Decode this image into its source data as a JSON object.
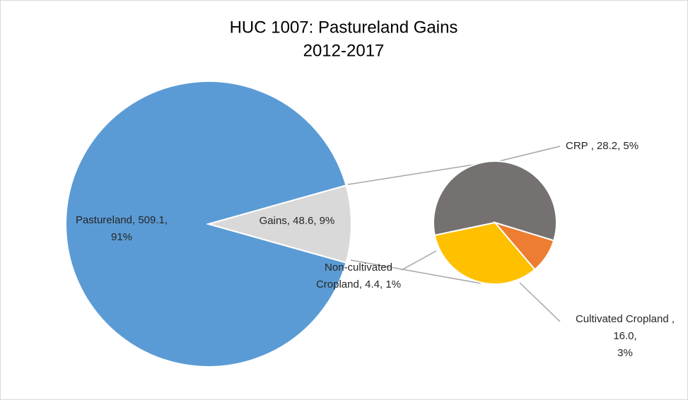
{
  "chart_data": {
    "type": "pie-of-pie",
    "title": "HUC 1007: Pastureland Gains",
    "subtitle": "2012-2017",
    "values": [
      509.1,
      48.6
    ],
    "colors": [
      "#5b9bd5",
      "#d9d9d9"
    ],
    "value_labels": [
      [
        "Pastureland, 509.1,",
        "91%"
      ],
      [
        "Gains, 48.6, 9%"
      ]
    ],
    "secondary": {
      "values": [
        28.2,
        16.0,
        4.4
      ],
      "colors": [
        "#767171",
        "#ffc000",
        "#ed7d31"
      ],
      "value_labels": [
        [
          "CRP , 28.2, 5%"
        ],
        [
          "Cultivated Cropland ,",
          "16.0,",
          "3%"
        ],
        [
          "Non-cultivated",
          "Cropland, 4.4, 1%"
        ]
      ]
    }
  }
}
